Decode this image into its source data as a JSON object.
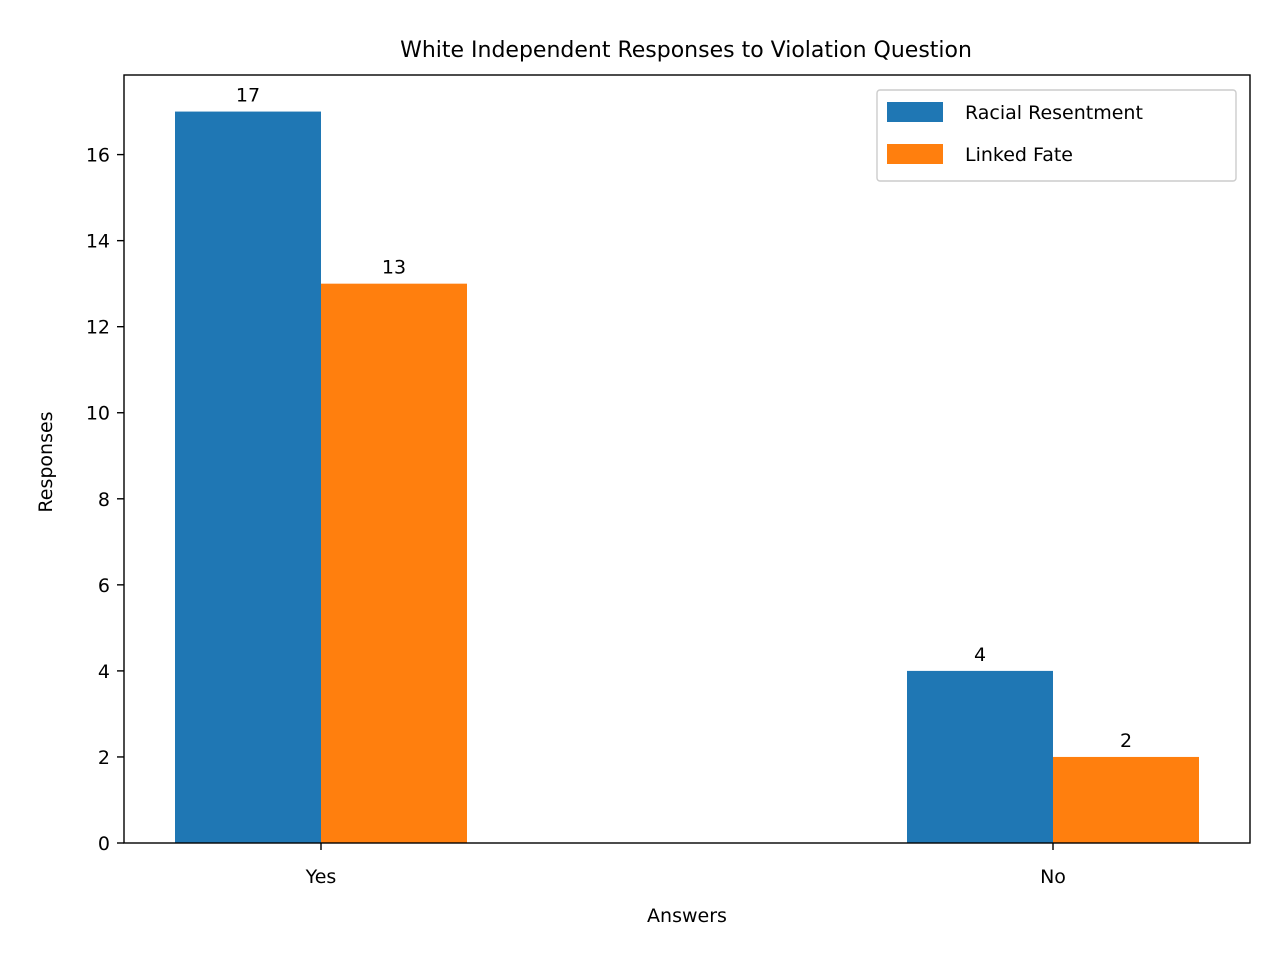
{
  "chart_data": {
    "type": "bar",
    "title": "White Independent Responses to Violation Question",
    "xlabel": "Answers",
    "ylabel": "Responses",
    "categories": [
      "Yes",
      "No"
    ],
    "series": [
      {
        "name": "Racial Resentment",
        "values": [
          17,
          4
        ],
        "color": "#1f77b4"
      },
      {
        "name": "Linked Fate",
        "values": [
          13,
          2
        ],
        "color": "#ff7f0e"
      }
    ],
    "ylim": [
      0,
      17.85
    ],
    "yticks": [
      0,
      2,
      4,
      6,
      8,
      10,
      12,
      14,
      16
    ],
    "grid": false,
    "legend_position": "top-right"
  }
}
